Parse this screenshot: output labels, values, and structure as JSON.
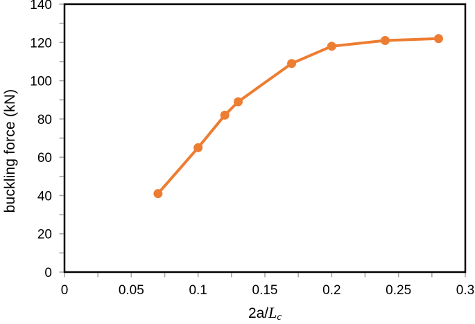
{
  "figure": {
    "background": "#ffffff"
  },
  "chart_data": {
    "type": "line",
    "title": "",
    "xlabel": {
      "prefix": "2a/",
      "variable": "L",
      "subscript": "c"
    },
    "ylabel": "buckling force (kN)",
    "xlim": [
      0,
      0.3
    ],
    "ylim": [
      0,
      140
    ],
    "grid": false,
    "legend_position": "none",
    "x_tick_labels": [
      "0",
      "0.05",
      "0.1",
      "0.15",
      "0.2",
      "0.25",
      "0.3"
    ],
    "y_tick_labels": [
      "0",
      "20",
      "40",
      "60",
      "80",
      "100",
      "120",
      "140"
    ],
    "x_minor_tick_step": 0.025,
    "y_minor_tick_step": 10,
    "axis_color": "#000000",
    "tick_color": "#A6A6A6",
    "series": [
      {
        "name": "buckling force",
        "color": "#ED7D31",
        "marker": "circle",
        "marker_radius": 6.5,
        "line_width": 4,
        "x": [
          0.07,
          0.1,
          0.12,
          0.13,
          0.17,
          0.2,
          0.24,
          0.28
        ],
        "y": [
          41,
          65,
          82,
          89,
          109,
          118,
          121,
          122
        ]
      }
    ]
  }
}
